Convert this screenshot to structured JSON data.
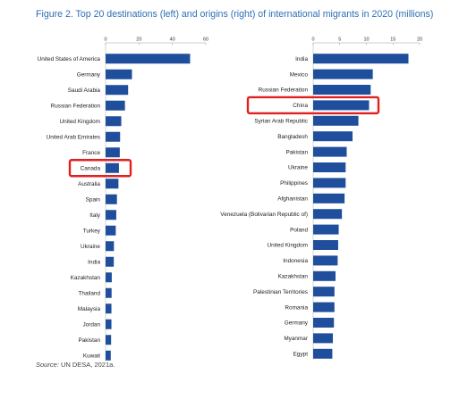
{
  "title": "Figure 2. Top 20 destinations (left) and origins (right) of international migrants in 2020 (millions)",
  "source": {
    "label": "Source:",
    "text": "UN DESA, 2021a."
  },
  "colors": {
    "bar": "#1f4e9c",
    "highlight": "#e02020",
    "axis": "#999999"
  },
  "chart_data": [
    {
      "type": "bar",
      "orientation": "horizontal",
      "xlim": [
        0,
        60
      ],
      "xticks": [
        0,
        20,
        40,
        60
      ],
      "categories": [
        "United States of America",
        "Germany",
        "Saudi Arabia",
        "Russian Federation",
        "United Kingdom",
        "United Arab Emirates",
        "France",
        "Canada",
        "Australia",
        "Spain",
        "Italy",
        "Turkey",
        "Ukraine",
        "India",
        "Kazakhstan",
        "Thailand",
        "Malaysia",
        "Jordan",
        "Pakistan",
        "Kuwait"
      ],
      "values": [
        50.6,
        15.8,
        13.5,
        11.6,
        9.4,
        8.7,
        8.5,
        8.0,
        7.7,
        6.8,
        6.4,
        6.1,
        5.0,
        4.9,
        3.7,
        3.6,
        3.5,
        3.5,
        3.3,
        3.1
      ],
      "highlight": "Canada"
    },
    {
      "type": "bar",
      "orientation": "horizontal",
      "xlim": [
        0,
        20
      ],
      "xticks": [
        0,
        5,
        10,
        15,
        20
      ],
      "categories": [
        "India",
        "Mexico",
        "Russian Federation",
        "China",
        "Syrian Arab Republic",
        "Bangladesh",
        "Pakistan",
        "Ukraine",
        "Philippines",
        "Afghanistan",
        "Venezuela (Bolivarian Republic of)",
        "Poland",
        "United Kingdom",
        "Indonesia",
        "Kazakhstan",
        "Palestinian Territories",
        "Romania",
        "Germany",
        "Myanmar",
        "Egypt"
      ],
      "values": [
        17.9,
        11.2,
        10.8,
        10.5,
        8.5,
        7.4,
        6.3,
        6.1,
        6.1,
        5.9,
        5.4,
        4.8,
        4.7,
        4.6,
        4.2,
        4.0,
        4.0,
        3.9,
        3.7,
        3.6
      ],
      "highlight": "China"
    }
  ]
}
